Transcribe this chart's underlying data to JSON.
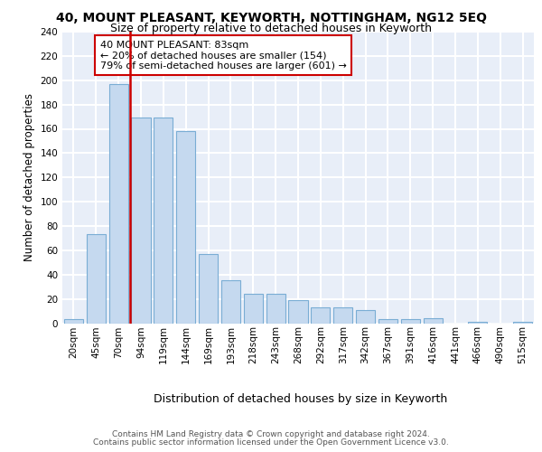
{
  "title1": "40, MOUNT PLEASANT, KEYWORTH, NOTTINGHAM, NG12 5EQ",
  "title2": "Size of property relative to detached houses in Keyworth",
  "xlabel": "Distribution of detached houses by size in Keyworth",
  "ylabel": "Number of detached properties",
  "bin_labels": [
    "20sqm",
    "45sqm",
    "70sqm",
    "94sqm",
    "119sqm",
    "144sqm",
    "169sqm",
    "193sqm",
    "218sqm",
    "243sqm",
    "268sqm",
    "292sqm",
    "317sqm",
    "342sqm",
    "367sqm",
    "391sqm",
    "416sqm",
    "441sqm",
    "466sqm",
    "490sqm",
    "515sqm"
  ],
  "bar_heights": [
    3,
    73,
    197,
    169,
    169,
    158,
    57,
    35,
    24,
    24,
    19,
    13,
    13,
    11,
    3,
    3,
    4,
    0,
    1,
    0,
    1
  ],
  "bar_color": "#c5d9ef",
  "bar_edge_color": "#7aadd4",
  "vline_color": "#cc0000",
  "vline_x": 2.5,
  "annotation_line1": "40 MOUNT PLEASANT: 83sqm",
  "annotation_line2": "← 20% of detached houses are smaller (154)",
  "annotation_line3": "79% of semi-detached houses are larger (601) →",
  "footer1": "Contains HM Land Registry data © Crown copyright and database right 2024.",
  "footer2": "Contains public sector information licensed under the Open Government Licence v3.0.",
  "bg_color": "#e8eef8",
  "grid_color": "#ffffff",
  "ylim_max": 240,
  "ytick_step": 20,
  "title1_fontsize": 10,
  "title2_fontsize": 9,
  "ylabel_fontsize": 8.5,
  "xlabel_fontsize": 9,
  "footer_fontsize": 6.5,
  "ann_fontsize": 8,
  "tick_fontsize": 7.5
}
